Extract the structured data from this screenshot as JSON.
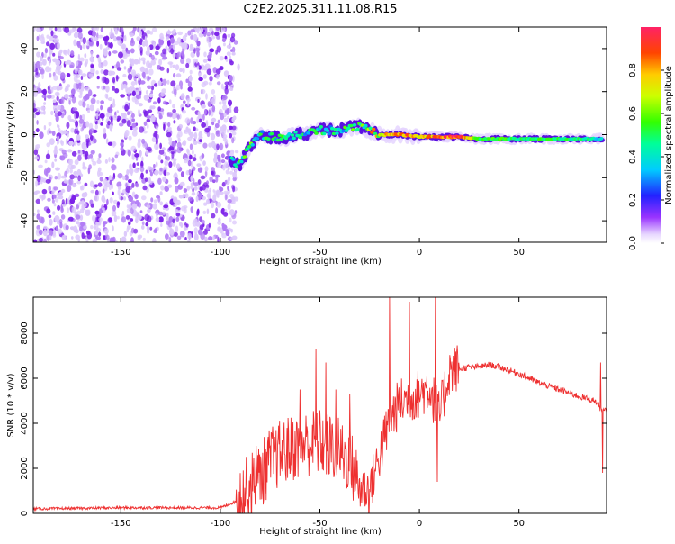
{
  "title": "C2E2.2025.311.11.08.R15",
  "chart_data": [
    {
      "type": "heatmap",
      "title": "C2E2.2025.311.11.08.R15",
      "xlabel": "Height of straight line (km)",
      "ylabel": "Frequency (Hz)",
      "xlim": [
        -194,
        94
      ],
      "ylim": [
        -50,
        50
      ],
      "xticks": [
        -150,
        -100,
        -50,
        0,
        50
      ],
      "yticks": [
        -40,
        -20,
        0,
        20,
        40
      ],
      "noise_region_x": [
        -194,
        -92
      ],
      "signal_track": [
        {
          "x": -95,
          "y": -12,
          "amp": 0.35
        },
        {
          "x": -90,
          "y": -14,
          "amp": 0.5
        },
        {
          "x": -85,
          "y": -5,
          "amp": 0.45
        },
        {
          "x": -80,
          "y": 0,
          "amp": 0.45
        },
        {
          "x": -70,
          "y": -2,
          "amp": 0.4
        },
        {
          "x": -60,
          "y": 0,
          "amp": 0.4
        },
        {
          "x": -50,
          "y": 2,
          "amp": 0.4
        },
        {
          "x": -40,
          "y": 2,
          "amp": 0.4
        },
        {
          "x": -30,
          "y": 4,
          "amp": 0.5
        },
        {
          "x": -20,
          "y": 0,
          "amp": 0.7
        },
        {
          "x": -10,
          "y": 0,
          "amp": 0.85
        },
        {
          "x": 0,
          "y": -1,
          "amp": 0.75
        },
        {
          "x": 10,
          "y": -1,
          "amp": 0.85
        },
        {
          "x": 20,
          "y": -1,
          "amp": 0.95
        },
        {
          "x": 30,
          "y": -2,
          "amp": 0.55
        },
        {
          "x": 50,
          "y": -2,
          "amp": 0.5
        },
        {
          "x": 70,
          "y": -2,
          "amp": 0.5
        },
        {
          "x": 85,
          "y": -2,
          "amp": 0.45
        },
        {
          "x": 92,
          "y": -2,
          "amp": 0.35
        }
      ],
      "colorbar": {
        "label": "Normalized spectral amplitude",
        "range": [
          0,
          1
        ],
        "ticks": [
          "0.0",
          "0.2",
          "0.4",
          "0.6",
          "0.8"
        ]
      }
    },
    {
      "type": "line",
      "xlabel": "Height of straight line (km)",
      "ylabel": "SNR (10 * v/v)",
      "xlim": [
        -194,
        94
      ],
      "ylim": [
        0,
        9600
      ],
      "xticks": [
        -150,
        -100,
        -50,
        0,
        50
      ],
      "yticks": [
        0,
        2000,
        4000,
        6000,
        8000
      ],
      "series": [
        {
          "name": "SNR",
          "color": "#ee3030",
          "x": [
            -194,
            -150,
            -100,
            -90,
            -80,
            -75,
            -70,
            -65,
            -60,
            -55,
            -50,
            -45,
            -40,
            -35,
            -30,
            -25,
            -20,
            -15,
            -10,
            -5,
            0,
            5,
            10,
            15,
            20,
            25,
            30,
            35,
            40,
            50,
            60,
            70,
            80,
            88,
            90,
            92,
            94
          ],
          "y": [
            200,
            250,
            250,
            600,
            1500,
            2200,
            2500,
            2700,
            2900,
            3000,
            3000,
            2800,
            2600,
            2200,
            1000,
            900,
            2500,
            4000,
            4800,
            5000,
            5200,
            5500,
            4200,
            6200,
            6400,
            6500,
            6500,
            6600,
            6500,
            6200,
            5800,
            5500,
            5200,
            5000,
            4800,
            4500,
            4600
          ]
        }
      ],
      "spikes": [
        {
          "x": -82,
          "y": 3000
        },
        {
          "x": -72,
          "y": 3700
        },
        {
          "x": -60,
          "y": 5500
        },
        {
          "x": -52,
          "y": 7300
        },
        {
          "x": -47,
          "y": 6700
        },
        {
          "x": -42,
          "y": 5500
        },
        {
          "x": -35,
          "y": 5300
        },
        {
          "x": -15,
          "y": 9600
        },
        {
          "x": -5,
          "y": 9400
        },
        {
          "x": 2,
          "y": 5800
        },
        {
          "x": 8,
          "y": 9600
        },
        {
          "x": 9,
          "y": 1400
        },
        {
          "x": 91,
          "y": 6700
        },
        {
          "x": 92,
          "y": 1800
        }
      ]
    }
  ]
}
